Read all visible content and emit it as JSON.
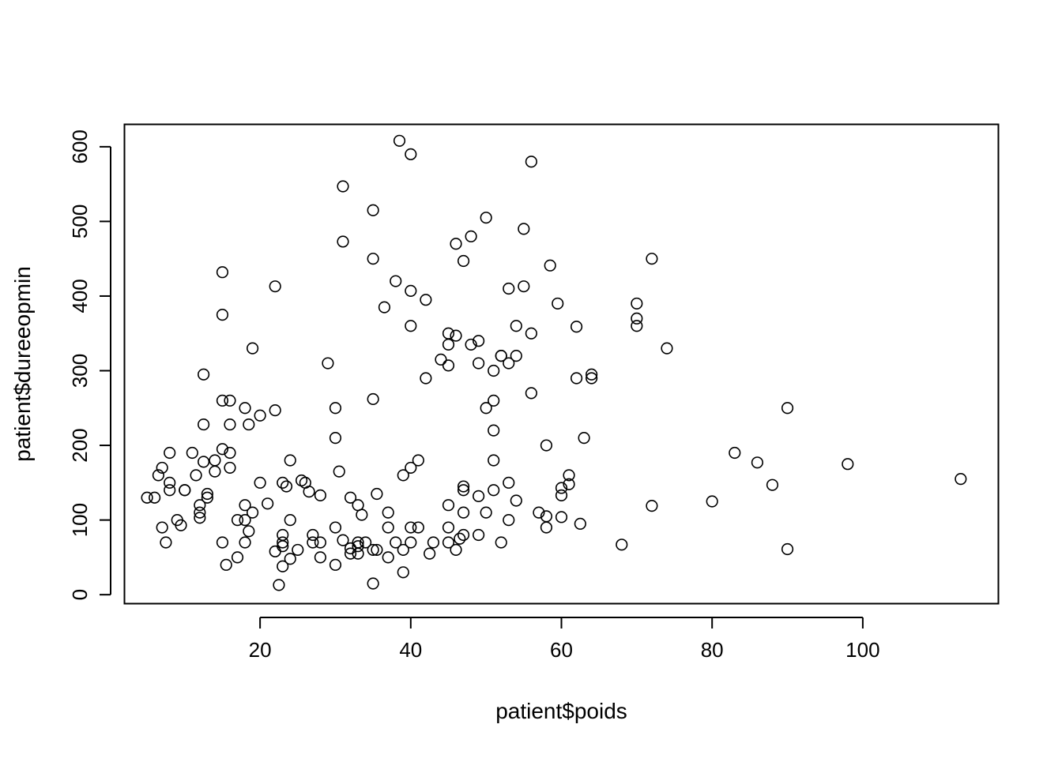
{
  "chart_data": {
    "type": "scatter",
    "title": "",
    "xlabel": "patient$poids",
    "ylabel": "patient$dureeopmin",
    "xlim": [
      2,
      118
    ],
    "ylim": [
      -12,
      630
    ],
    "xticks": [
      20,
      40,
      60,
      80,
      100
    ],
    "yticks": [
      0,
      100,
      200,
      300,
      400,
      500,
      600
    ],
    "xtick_labels": [
      "20",
      "40",
      "60",
      "80",
      "100"
    ],
    "ytick_labels": [
      "0",
      "100",
      "200",
      "300",
      "400",
      "500",
      "600"
    ],
    "grid": false,
    "legend": false,
    "marker": "open-circle",
    "points": [
      [
        5,
        130
      ],
      [
        6,
        130
      ],
      [
        6.5,
        160
      ],
      [
        7,
        170
      ],
      [
        7,
        90
      ],
      [
        7.5,
        70
      ],
      [
        8,
        150
      ],
      [
        8,
        140
      ],
      [
        8,
        190
      ],
      [
        9,
        100
      ],
      [
        9.5,
        93
      ],
      [
        10,
        140
      ],
      [
        10,
        140
      ],
      [
        11,
        190
      ],
      [
        11.5,
        160
      ],
      [
        12,
        120
      ],
      [
        12,
        110
      ],
      [
        12,
        103
      ],
      [
        12.5,
        178
      ],
      [
        12.5,
        228
      ],
      [
        12.5,
        295
      ],
      [
        13,
        135
      ],
      [
        13,
        130
      ],
      [
        14,
        180
      ],
      [
        14,
        165
      ],
      [
        15,
        432
      ],
      [
        15,
        195
      ],
      [
        15,
        260
      ],
      [
        15,
        70
      ],
      [
        15,
        375
      ],
      [
        15.5,
        40
      ],
      [
        16,
        260
      ],
      [
        16,
        228
      ],
      [
        16,
        190
      ],
      [
        16,
        170
      ],
      [
        17,
        100
      ],
      [
        17,
        50
      ],
      [
        18,
        250
      ],
      [
        18,
        120
      ],
      [
        18,
        100
      ],
      [
        18,
        70
      ],
      [
        18.5,
        85
      ],
      [
        18.5,
        228
      ],
      [
        19,
        110
      ],
      [
        19,
        330
      ],
      [
        20,
        240
      ],
      [
        20,
        150
      ],
      [
        21,
        122
      ],
      [
        22,
        413
      ],
      [
        22,
        247
      ],
      [
        22,
        58
      ],
      [
        22.5,
        13
      ],
      [
        23,
        150
      ],
      [
        23,
        80
      ],
      [
        23,
        70
      ],
      [
        23,
        65
      ],
      [
        23,
        38
      ],
      [
        23.5,
        145
      ],
      [
        24,
        180
      ],
      [
        24,
        100
      ],
      [
        24,
        48
      ],
      [
        25,
        60
      ],
      [
        25.5,
        153
      ],
      [
        26,
        150
      ],
      [
        26.5,
        138
      ],
      [
        27,
        80
      ],
      [
        27,
        70
      ],
      [
        28,
        133
      ],
      [
        28,
        70
      ],
      [
        28,
        50
      ],
      [
        29,
        310
      ],
      [
        30,
        250
      ],
      [
        30,
        210
      ],
      [
        30,
        90
      ],
      [
        30,
        40
      ],
      [
        30.5,
        165
      ],
      [
        31,
        547
      ],
      [
        31,
        473
      ],
      [
        31,
        73
      ],
      [
        32,
        130
      ],
      [
        32,
        62
      ],
      [
        32,
        55
      ],
      [
        33,
        120
      ],
      [
        33,
        70
      ],
      [
        33,
        65
      ],
      [
        33,
        55
      ],
      [
        33.5,
        107
      ],
      [
        34,
        70
      ],
      [
        35,
        515
      ],
      [
        35,
        450
      ],
      [
        35,
        262
      ],
      [
        35,
        60
      ],
      [
        35,
        15
      ],
      [
        35.5,
        135
      ],
      [
        35.5,
        60
      ],
      [
        36.5,
        385
      ],
      [
        37,
        110
      ],
      [
        37,
        90
      ],
      [
        37,
        50
      ],
      [
        38,
        420
      ],
      [
        38,
        70
      ],
      [
        38.5,
        608
      ],
      [
        39,
        160
      ],
      [
        39,
        60
      ],
      [
        39,
        30
      ],
      [
        40,
        590
      ],
      [
        40,
        407
      ],
      [
        40,
        360
      ],
      [
        40,
        170
      ],
      [
        40,
        90
      ],
      [
        40,
        70
      ],
      [
        41,
        180
      ],
      [
        41,
        90
      ],
      [
        42,
        395
      ],
      [
        42,
        290
      ],
      [
        42.5,
        55
      ],
      [
        43,
        70
      ],
      [
        44,
        315
      ],
      [
        45,
        350
      ],
      [
        45,
        335
      ],
      [
        45,
        307
      ],
      [
        45,
        120
      ],
      [
        45,
        90
      ],
      [
        45,
        70
      ],
      [
        46,
        470
      ],
      [
        46,
        347
      ],
      [
        46,
        60
      ],
      [
        46.5,
        75
      ],
      [
        47,
        447
      ],
      [
        47,
        145
      ],
      [
        47,
        140
      ],
      [
        47,
        110
      ],
      [
        47,
        80
      ],
      [
        48,
        480
      ],
      [
        48,
        335
      ],
      [
        49,
        340
      ],
      [
        49,
        310
      ],
      [
        49,
        132
      ],
      [
        49,
        80
      ],
      [
        50,
        505
      ],
      [
        50,
        250
      ],
      [
        50,
        110
      ],
      [
        51,
        300
      ],
      [
        51,
        260
      ],
      [
        51,
        220
      ],
      [
        51,
        180
      ],
      [
        51,
        140
      ],
      [
        52,
        320
      ],
      [
        52,
        320
      ],
      [
        52,
        70
      ],
      [
        53,
        410
      ],
      [
        53,
        310
      ],
      [
        53,
        150
      ],
      [
        53,
        100
      ],
      [
        54,
        360
      ],
      [
        54,
        320
      ],
      [
        54,
        126
      ],
      [
        55,
        490
      ],
      [
        55,
        413
      ],
      [
        56,
        580
      ],
      [
        56,
        350
      ],
      [
        56,
        270
      ],
      [
        57,
        110
      ],
      [
        58,
        200
      ],
      [
        58,
        105
      ],
      [
        58,
        90
      ],
      [
        58.5,
        441
      ],
      [
        59.5,
        390
      ],
      [
        60,
        143
      ],
      [
        60,
        133
      ],
      [
        60,
        104
      ],
      [
        61,
        160
      ],
      [
        61,
        148
      ],
      [
        62,
        359
      ],
      [
        62,
        290
      ],
      [
        62.5,
        95
      ],
      [
        63,
        210
      ],
      [
        64,
        295
      ],
      [
        64,
        290
      ],
      [
        68,
        67
      ],
      [
        70,
        390
      ],
      [
        70,
        370
      ],
      [
        70,
        360
      ],
      [
        72,
        450
      ],
      [
        72,
        119
      ],
      [
        74,
        330
      ],
      [
        80,
        125
      ],
      [
        83,
        190
      ],
      [
        86,
        177
      ],
      [
        88,
        147
      ],
      [
        90,
        250
      ],
      [
        90,
        61
      ],
      [
        98,
        175
      ],
      [
        113,
        155
      ]
    ]
  }
}
